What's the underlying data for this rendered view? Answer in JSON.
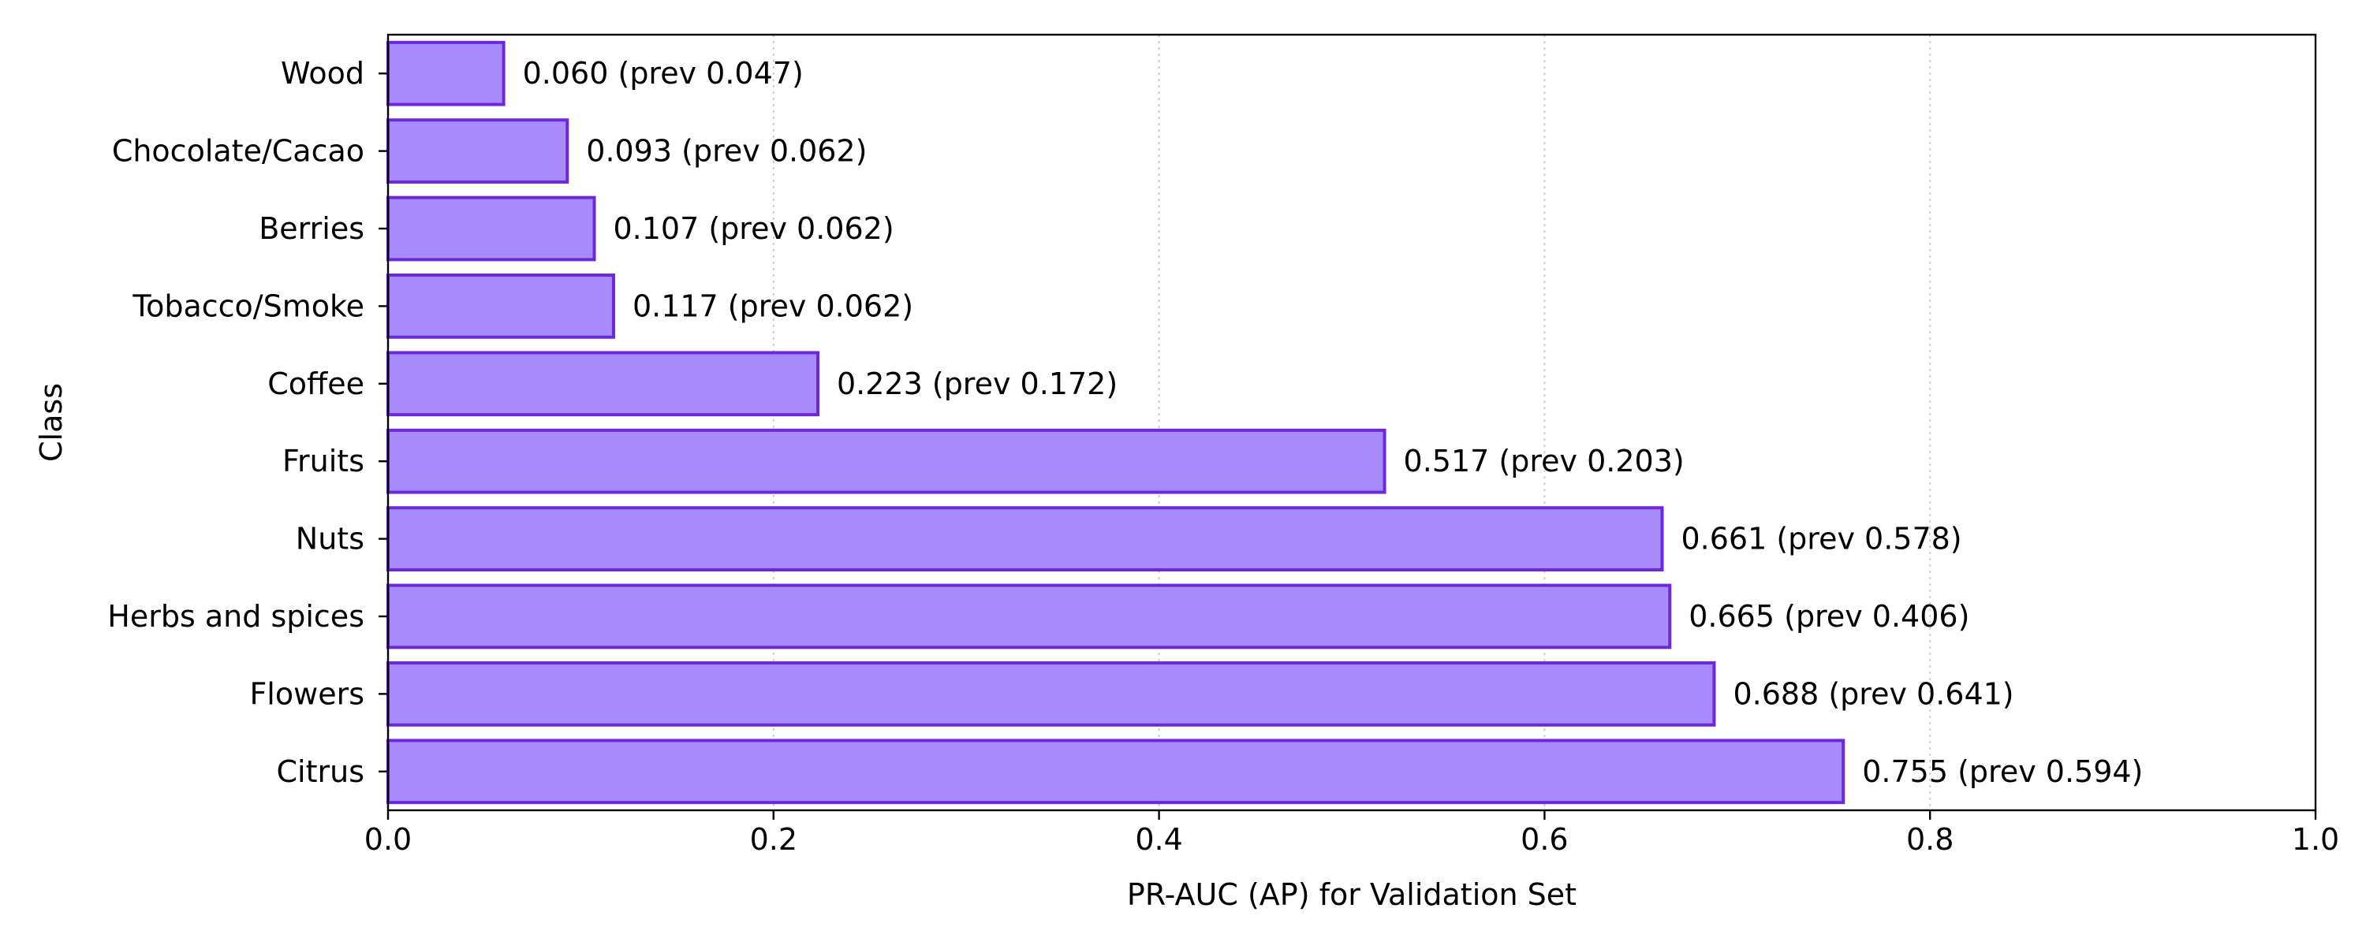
{
  "chart_data": {
    "type": "bar",
    "orientation": "horizontal",
    "title": "",
    "xlabel": "PR-AUC (AP) for Validation Set",
    "ylabel": "Class",
    "xlim": [
      0.0,
      1.0
    ],
    "x_ticks": [
      0.0,
      0.2,
      0.4,
      0.6,
      0.8,
      1.0
    ],
    "x_tick_labels": [
      "0.0",
      "0.2",
      "0.4",
      "0.6",
      "0.8",
      "1.0"
    ],
    "grid": {
      "x": true,
      "y": false,
      "style": "dotted"
    },
    "legend": "none",
    "colors": {
      "bar_fill": "#a78bfa",
      "bar_edge": "#6d28d9",
      "grid": "#cccccc",
      "axis": "#000000",
      "text": "#000000"
    },
    "categories": [
      "Wood",
      "Chocolate/Cacao",
      "Berries",
      "Tobacco/Smoke",
      "Coffee",
      "Fruits",
      "Nuts",
      "Herbs and spices",
      "Flowers",
      "Citrus"
    ],
    "values": [
      0.06,
      0.093,
      0.107,
      0.117,
      0.223,
      0.517,
      0.661,
      0.665,
      0.688,
      0.755
    ],
    "previous_values": [
      0.047,
      0.062,
      0.062,
      0.062,
      0.172,
      0.203,
      0.578,
      0.406,
      0.641,
      0.594
    ],
    "data_labels": [
      "0.060  (prev 0.047)",
      "0.093  (prev 0.062)",
      "0.107  (prev 0.062)",
      "0.117  (prev 0.062)",
      "0.223  (prev 0.172)",
      "0.517  (prev 0.203)",
      "0.661  (prev 0.578)",
      "0.665  (prev 0.406)",
      "0.688  (prev 0.641)",
      "0.755  (prev 0.594)"
    ]
  }
}
